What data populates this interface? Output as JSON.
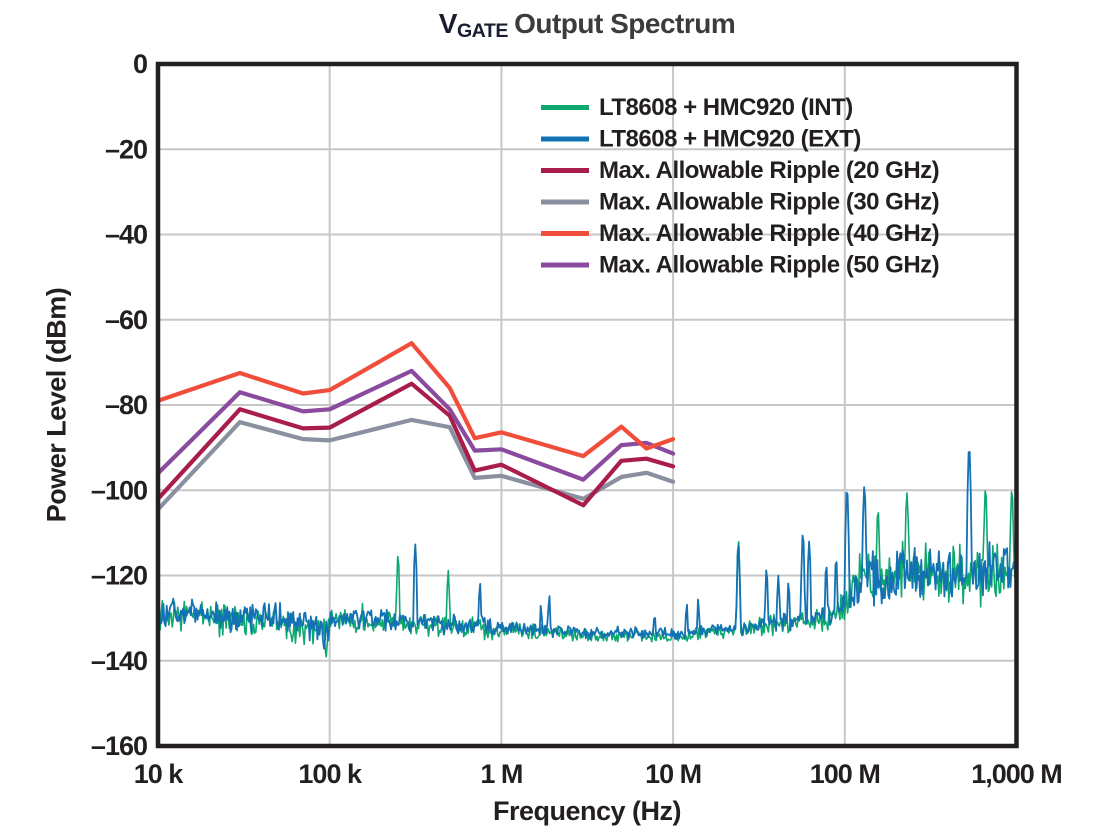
{
  "title": {
    "prefix": "V",
    "subscript": "GATE",
    "rest": "Output Spectrum"
  },
  "axes": {
    "x_label": "Frequency (Hz)",
    "y_label": "Power Level (dBm)",
    "x_ticks": [
      "10 k",
      "100 k",
      "1 M",
      "10 M",
      "100 M",
      "1,000 M"
    ],
    "y_ticks": [
      "0",
      "–20",
      "–40",
      "–60",
      "–80",
      "–100",
      "–120",
      "–140",
      "–160"
    ],
    "x_scale": "log",
    "x_range_hz": [
      10000,
      1000000000
    ],
    "y_range_dbm": [
      -160,
      0
    ],
    "grid": true
  },
  "colors": {
    "background": "#ffffff",
    "frame": "#231f20",
    "grid": "#c7c7c7",
    "label": "#231f20",
    "title_prefix": "#181d2f",
    "title_rest": "#3c3c3e",
    "green": "#0ea86e",
    "blue": "#1272b4",
    "crimson": "#a81d4a",
    "gray": "#8a90a0",
    "orange": "#f04e3b",
    "purple": "#8a4b9e"
  },
  "chart_data": {
    "type": "line",
    "title": "V GATE Output Spectrum",
    "xlabel": "Frequency (Hz)",
    "ylabel": "Power Level (dBm)",
    "xlim_hz": [
      10000,
      1000000000
    ],
    "ylim_dbm": [
      -160,
      0
    ],
    "x_scale": "log",
    "grid": true,
    "legend_position": "upper-right-inside",
    "legend_items": [
      {
        "label": "LT8608 + HMC920 (INT)",
        "color": "#0ea86e"
      },
      {
        "label": "LT8608 + HMC920 (EXT)",
        "color": "#1272b4"
      },
      {
        "label": "Max. Allowable Ripple (20 GHz)",
        "color": "#a81d4a"
      },
      {
        "label": "Max. Allowable Ripple (30 GHz)",
        "color": "#8a90a0"
      },
      {
        "label": "Max. Allowable Ripple (40 GHz)",
        "color": "#f04e3b"
      },
      {
        "label": "Max. Allowable Ripple (50 GHz)",
        "color": "#8a4b9e"
      }
    ],
    "ripple_series": [
      {
        "name": "Max. Allowable Ripple (30 GHz)",
        "color": "#8a90a0",
        "points": [
          [
            10000,
            -104.5
          ],
          [
            30000,
            -84
          ],
          [
            70000,
            -88
          ],
          [
            100000,
            -88.3
          ],
          [
            300000,
            -83.5
          ],
          [
            500000,
            -85.2
          ],
          [
            700000,
            -97.1
          ],
          [
            1000000,
            -96.6
          ],
          [
            3000000,
            -102
          ],
          [
            5000000,
            -96.9
          ],
          [
            7000000,
            -95.9
          ],
          [
            10000000,
            -98
          ]
        ]
      },
      {
        "name": "Max. Allowable Ripple (20 GHz)",
        "color": "#a81d4a",
        "points": [
          [
            10000,
            -102
          ],
          [
            30000,
            -81
          ],
          [
            70000,
            -85.5
          ],
          [
            100000,
            -85.3
          ],
          [
            300000,
            -75
          ],
          [
            500000,
            -82.5
          ],
          [
            700000,
            -95.4
          ],
          [
            1000000,
            -94
          ],
          [
            3000000,
            -103.5
          ],
          [
            5000000,
            -93.1
          ],
          [
            7000000,
            -92.6
          ],
          [
            10000000,
            -94.4
          ]
        ]
      },
      {
        "name": "Max. Allowable Ripple (50 GHz)",
        "color": "#8a4b9e",
        "points": [
          [
            10000,
            -96
          ],
          [
            30000,
            -77
          ],
          [
            70000,
            -81.5
          ],
          [
            100000,
            -81
          ],
          [
            300000,
            -72
          ],
          [
            500000,
            -81
          ],
          [
            700000,
            -90.7
          ],
          [
            1000000,
            -90.4
          ],
          [
            3000000,
            -97.5
          ],
          [
            5000000,
            -89.4
          ],
          [
            7000000,
            -88.9
          ],
          [
            10000000,
            -91.4
          ]
        ]
      },
      {
        "name": "Max. Allowable Ripple (40 GHz)",
        "color": "#f04e3b",
        "points": [
          [
            10000,
            -79
          ],
          [
            30000,
            -72.5
          ],
          [
            70000,
            -77.3
          ],
          [
            100000,
            -76.5
          ],
          [
            300000,
            -65.5
          ],
          [
            500000,
            -76
          ],
          [
            700000,
            -87.8
          ],
          [
            1000000,
            -86.4
          ],
          [
            3000000,
            -92
          ],
          [
            5000000,
            -85.1
          ],
          [
            7000000,
            -90.2
          ],
          [
            10000000,
            -88
          ]
        ]
      }
    ],
    "noise_model": {
      "baseline_dbm": [
        [
          10000,
          -128.8
        ],
        [
          20000,
          -129.2
        ],
        [
          40000,
          -130.2
        ],
        [
          60000,
          -131.2
        ],
        [
          80000,
          -132.3
        ],
        [
          95000,
          -133.2
        ],
        [
          99000,
          -133.6
        ],
        [
          101000,
          -130.0
        ],
        [
          150000,
          -130.2
        ],
        [
          300000,
          -131.2
        ],
        [
          600000,
          -132.0
        ],
        [
          1000000,
          -132.3
        ],
        [
          1600000,
          -133.0
        ],
        [
          3000000,
          -133.8
        ],
        [
          6000000,
          -133.8
        ],
        [
          10000000,
          -134.0
        ],
        [
          15000000,
          -133.4
        ],
        [
          25000000,
          -132.4
        ],
        [
          40000000,
          -131.0
        ],
        [
          60000000,
          -130.4
        ],
        [
          80000000,
          -129.6
        ],
        [
          100000000,
          -127.5
        ],
        [
          112000000,
          -121.5
        ],
        [
          140000000,
          -119.8
        ],
        [
          175000000,
          -123.0
        ],
        [
          220000000,
          -117.5
        ],
        [
          260000000,
          -119.8
        ],
        [
          320000000,
          -119.2
        ],
        [
          420000000,
          -120.5
        ],
        [
          530000000,
          -118.8
        ],
        [
          700000000,
          -119.5
        ],
        [
          850000000,
          -120.0
        ],
        [
          1000000000,
          -120.0
        ]
      ],
      "amplitude_db": [
        [
          10000,
          3.3
        ],
        [
          80000,
          3.5
        ],
        [
          99000,
          3.5
        ],
        [
          101000,
          2.3
        ],
        [
          600000,
          2.2
        ],
        [
          1500000,
          1.5
        ],
        [
          3000000,
          1.3
        ],
        [
          10000000,
          1.3
        ],
        [
          20000000,
          1.5
        ],
        [
          40000000,
          2.0
        ],
        [
          80000000,
          2.4
        ],
        [
          100000000,
          3.0
        ],
        [
          112000000,
          5.8
        ],
        [
          1000000000,
          6.0
        ]
      ]
    },
    "noise_traces": [
      {
        "name": "LT8608 + HMC920 (INT)",
        "color": "#0ea86e",
        "seed": 11,
        "amp_scale": 1.18,
        "bias_db": -0.25,
        "stroke": 1.6,
        "spikes": [
          [
            155000,
            -126.5
          ],
          [
            250000,
            -115.1
          ],
          [
            490000,
            -118.8
          ],
          [
            24000000,
            -111.7
          ],
          [
            156000000,
            -104.5
          ],
          [
            230000000,
            -100.6
          ],
          [
            660000000,
            -99.5
          ],
          [
            940000000,
            -99.8
          ]
        ],
        "dips": [
          [
            95000,
            -139.5
          ]
        ]
      },
      {
        "name": "LT8608 + HMC920 (EXT)",
        "color": "#1272b4",
        "seed": 97,
        "amp_scale": 1.0,
        "bias_db": 0.25,
        "stroke": 1.8,
        "spikes": [
          [
            315000,
            -112.7
          ],
          [
            750000,
            -121.7
          ],
          [
            1700000,
            -126.8
          ],
          [
            1900000,
            -124.6
          ],
          [
            7800000,
            -128.8
          ],
          [
            12000000,
            -126.5
          ],
          [
            14000000,
            -125.5
          ],
          [
            24000000,
            -112.7
          ],
          [
            35000000,
            -118.4
          ],
          [
            41000000,
            -120.0
          ],
          [
            47000000,
            -121.5
          ],
          [
            57000000,
            -110.0
          ],
          [
            62000000,
            -112.0
          ],
          [
            78000000,
            -117.4
          ],
          [
            89000000,
            -115.9
          ],
          [
            103000000,
            -99.5
          ],
          [
            130000000,
            -99.0
          ],
          [
            530000000,
            -89.8
          ]
        ],
        "dips": [
          [
            93000,
            -137.5
          ]
        ]
      }
    ]
  }
}
